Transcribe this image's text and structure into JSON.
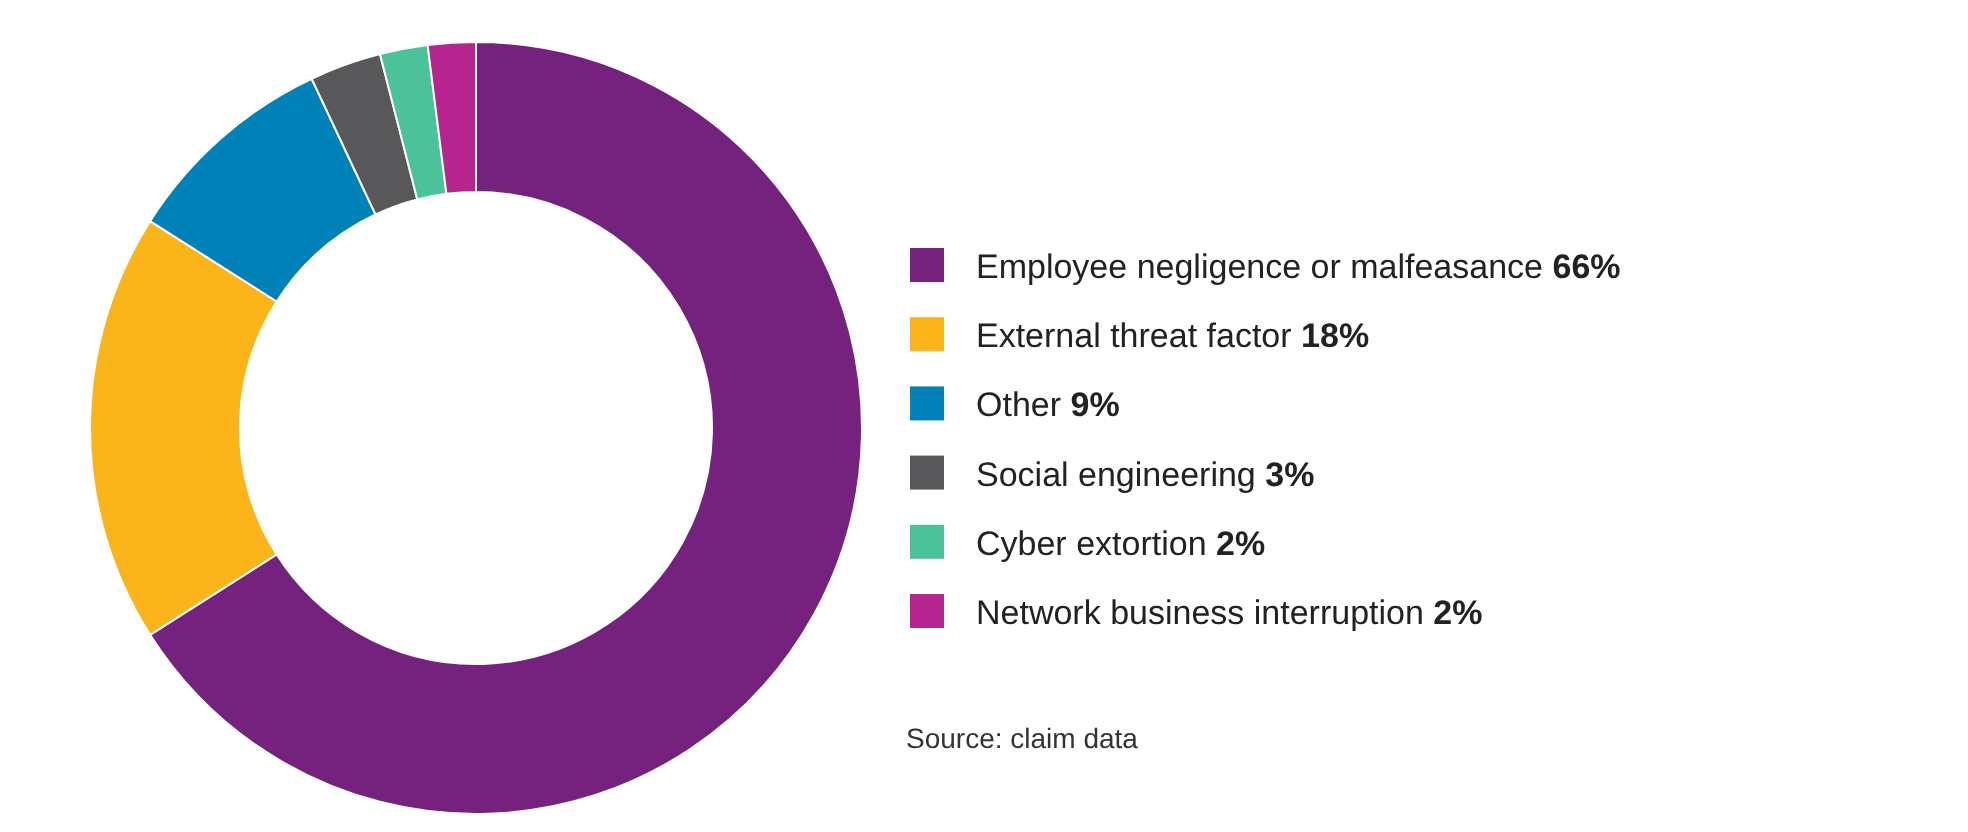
{
  "chart_data": {
    "type": "donut",
    "categories": [
      "Employee negligence or malfeasance",
      "External threat factor",
      "Other",
      "Social engineering",
      "Cyber extortion",
      "Network business interruption"
    ],
    "values": [
      66,
      18,
      9,
      3,
      2,
      2
    ],
    "value_labels": [
      "66%",
      "18%",
      "9%",
      "3%",
      "2%",
      "2%"
    ],
    "colors": [
      "#74227e",
      "#fbb51b",
      "#0081b8",
      "#58585a",
      "#4cc29a",
      "#b5248f"
    ],
    "legend": "right",
    "annotations": [
      "Source: claim data"
    ]
  }
}
